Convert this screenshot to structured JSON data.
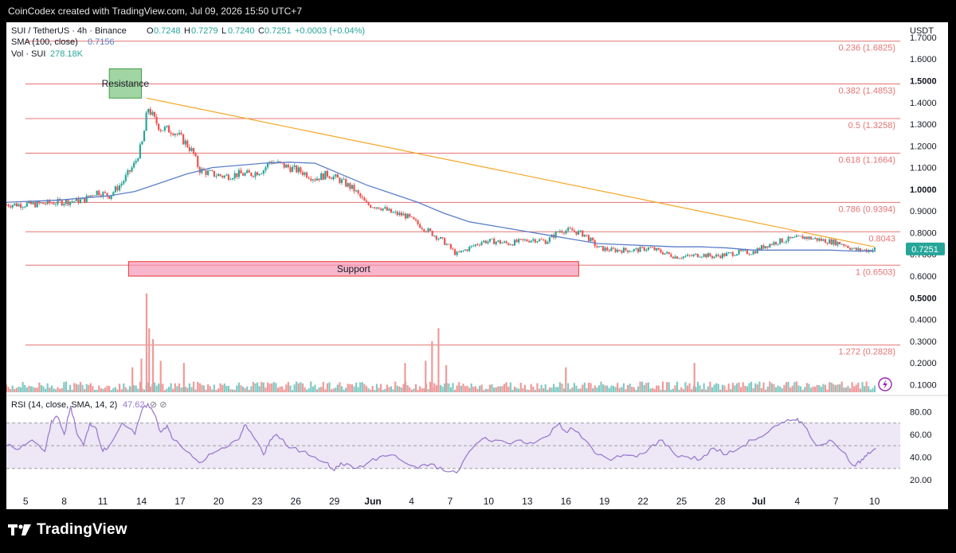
{
  "header": {
    "credit": "CoinCodex created with TradingView.com, Jul 09, 2026 15:50 UTC+7",
    "symbol": "SUI / TetherUS · 4h · Binance",
    "ohlc": {
      "o_label": "O",
      "o": "0.7248",
      "h_label": "H",
      "h": "0.7279",
      "l_label": "L",
      "l": "0.7240",
      "c_label": "C",
      "c": "0.7251",
      "change": "+0.0003 (+0.04%)"
    },
    "sma_label": "SMA (100, close)",
    "sma_value": "0.7156",
    "vol_label": "Vol · SUI",
    "vol_value": "278.18K",
    "rsi_label": "RSI (14, close, SMA, 14, 2)",
    "rsi_value": "47.62",
    "rsi_icons": "⊘ ⊘"
  },
  "logo": {
    "text": "TradingView",
    "icon": "tradingview-logo-icon"
  },
  "colors": {
    "up": "#26a69a",
    "down": "#ef5350",
    "sma": "#5b7ec9",
    "trendline": "#f5a623",
    "fib": "#e57373",
    "resistance_fill": "#81c784",
    "support_fill": "#f48fb1",
    "rsi": "#9575cd",
    "rsi_band": "#ede7f6",
    "price_badge": "#26a69a"
  },
  "chart_data": {
    "type": "candlestick",
    "currency_label": "USDT",
    "last_price": "0.7251",
    "x_ticks": [
      "5",
      "8",
      "11",
      "14",
      "17",
      "20",
      "23",
      "26",
      "29",
      "Jun",
      "4",
      "7",
      "10",
      "13",
      "16",
      "19",
      "22",
      "25",
      "28",
      "Jul",
      "4",
      "7",
      "10"
    ],
    "y_ticks": [
      "1.7000",
      "1.6000",
      "1.5000",
      "1.4000",
      "1.3000",
      "1.2000",
      "1.1000",
      "1.0000",
      "0.9000",
      "0.8000",
      "0.7000",
      "0.6000",
      "0.5000",
      "0.4000",
      "0.3000",
      "0.2000",
      "0.1000"
    ],
    "y_ticks_bold": [
      "1.5000",
      "1.0000",
      "0.5000"
    ],
    "y_range": [
      0.065,
      1.74
    ],
    "fib_levels": [
      {
        "label": "0.236 (1.6825)",
        "value": 1.6825
      },
      {
        "label": "0.382 (1.4853)",
        "value": 1.4853
      },
      {
        "label": "0.5 (1.3258)",
        "value": 1.3258
      },
      {
        "label": "0.618 (1.1664)",
        "value": 1.1664
      },
      {
        "label": "0.786 (0.9394)",
        "value": 0.9394
      },
      {
        "label": "0.8043",
        "value": 0.8043
      },
      {
        "label": "1 (0.6503)",
        "value": 0.6503
      },
      {
        "label": "1.272 (0.2828)",
        "value": 0.2828
      }
    ],
    "zones": [
      {
        "label": "Resistance",
        "x_start": 8.0,
        "x_end": 10.5,
        "top": 1.555,
        "bottom": 1.42
      },
      {
        "label": "Support",
        "x_start": 9.5,
        "x_end": 44.5,
        "top": 0.667,
        "bottom": 0.6
      }
    ],
    "trendline": [
      {
        "x": 10.9,
        "y": 1.42
      },
      {
        "x": 67.5,
        "y": 0.735
      }
    ],
    "price_path": [
      [
        2,
        0.93
      ],
      [
        4,
        0.94
      ],
      [
        6,
        0.95
      ],
      [
        7,
        0.99
      ],
      [
        8,
        0.97
      ],
      [
        9,
        1.03
      ],
      [
        10,
        1.12
      ],
      [
        10.6,
        1.22
      ],
      [
        11,
        1.38
      ],
      [
        11.5,
        1.32
      ],
      [
        12,
        1.28
      ],
      [
        13,
        1.27
      ],
      [
        14,
        1.21
      ],
      [
        14.5,
        1.17
      ],
      [
        15,
        1.09
      ],
      [
        16,
        1.07
      ],
      [
        17,
        1.06
      ],
      [
        18,
        1.07
      ],
      [
        19,
        1.07
      ],
      [
        20,
        1.09
      ],
      [
        20.5,
        1.13
      ],
      [
        21,
        1.12
      ],
      [
        22,
        1.1
      ],
      [
        23,
        1.08
      ],
      [
        24,
        1.05
      ],
      [
        25,
        1.07
      ],
      [
        26,
        1.04
      ],
      [
        27,
        1.0
      ],
      [
        28,
        0.93
      ],
      [
        29,
        0.92
      ],
      [
        30,
        0.89
      ],
      [
        31,
        0.88
      ],
      [
        32,
        0.84
      ],
      [
        33,
        0.8
      ],
      [
        34,
        0.76
      ],
      [
        35,
        0.7
      ],
      [
        36,
        0.73
      ],
      [
        37,
        0.76
      ],
      [
        38,
        0.76
      ],
      [
        39,
        0.75
      ],
      [
        40,
        0.76
      ],
      [
        41,
        0.77
      ],
      [
        42,
        0.76
      ],
      [
        43,
        0.81
      ],
      [
        44,
        0.81
      ],
      [
        45,
        0.79
      ],
      [
        46,
        0.73
      ],
      [
        47,
        0.72
      ],
      [
        48,
        0.72
      ],
      [
        49,
        0.72
      ],
      [
        50,
        0.73
      ],
      [
        51,
        0.71
      ],
      [
        52,
        0.69
      ],
      [
        53,
        0.69
      ],
      [
        54,
        0.7
      ],
      [
        55,
        0.69
      ],
      [
        56,
        0.7
      ],
      [
        57,
        0.71
      ],
      [
        58,
        0.71
      ],
      [
        59,
        0.74
      ],
      [
        60,
        0.76
      ],
      [
        61,
        0.77
      ],
      [
        62,
        0.78
      ],
      [
        63,
        0.77
      ],
      [
        64,
        0.76
      ],
      [
        65,
        0.75
      ],
      [
        66,
        0.72
      ],
      [
        67,
        0.72
      ],
      [
        67.6,
        0.725
      ]
    ],
    "sma_path": [
      [
        0,
        0.94
      ],
      [
        4,
        0.95
      ],
      [
        8,
        0.97
      ],
      [
        10,
        0.99
      ],
      [
        12,
        1.03
      ],
      [
        14,
        1.07
      ],
      [
        16,
        1.1
      ],
      [
        18,
        1.11
      ],
      [
        20,
        1.12
      ],
      [
        22,
        1.125
      ],
      [
        24,
        1.12
      ],
      [
        26,
        1.07
      ],
      [
        28,
        1.02
      ],
      [
        30,
        0.98
      ],
      [
        32,
        0.94
      ],
      [
        34,
        0.89
      ],
      [
        36,
        0.85
      ],
      [
        38,
        0.83
      ],
      [
        40,
        0.81
      ],
      [
        42,
        0.79
      ],
      [
        44,
        0.77
      ],
      [
        46,
        0.75
      ],
      [
        48,
        0.745
      ],
      [
        50,
        0.74
      ],
      [
        52,
        0.735
      ],
      [
        54,
        0.735
      ],
      [
        56,
        0.73
      ],
      [
        58,
        0.72
      ],
      [
        60,
        0.72
      ],
      [
        62,
        0.72
      ],
      [
        64,
        0.72
      ],
      [
        66,
        0.715
      ],
      [
        67.6,
        0.7156
      ]
    ],
    "volume_spikes": [
      {
        "x": 10.9,
        "v": 0.52
      },
      {
        "x": 11.1,
        "v": 0.36
      },
      {
        "x": 11.4,
        "v": 0.31
      },
      {
        "x": 10.5,
        "v": 0.22
      },
      {
        "x": 12,
        "v": 0.21
      },
      {
        "x": 9.8,
        "v": 0.18
      },
      {
        "x": 13.8,
        "v": 0.2
      },
      {
        "x": 33.1,
        "v": 0.3
      },
      {
        "x": 33.6,
        "v": 0.36
      },
      {
        "x": 32.6,
        "v": 0.21
      },
      {
        "x": 34.2,
        "v": 0.19
      },
      {
        "x": 31,
        "v": 0.2
      },
      {
        "x": 53.5,
        "v": 0.2
      },
      {
        "x": 43.5,
        "v": 0.18
      }
    ],
    "rsi": {
      "y_ticks": [
        "80.00",
        "60.00",
        "40.00",
        "20.00"
      ],
      "range": [
        13,
        90
      ],
      "band": [
        30,
        70
      ],
      "mid": 50,
      "path": [
        [
          0,
          50
        ],
        [
          1,
          47
        ],
        [
          2,
          55
        ],
        [
          3,
          45
        ],
        [
          3.5,
          72
        ],
        [
          4,
          75
        ],
        [
          4.5,
          60
        ],
        [
          5,
          85
        ],
        [
          5.5,
          60
        ],
        [
          6,
          50
        ],
        [
          6.5,
          70
        ],
        [
          7,
          65
        ],
        [
          7.5,
          45
        ],
        [
          8,
          50
        ],
        [
          9,
          70
        ],
        [
          10,
          60
        ],
        [
          10.5,
          80
        ],
        [
          11,
          87
        ],
        [
          11.5,
          78
        ],
        [
          12,
          62
        ],
        [
          12.5,
          68
        ],
        [
          13,
          55
        ],
        [
          14,
          45
        ],
        [
          15,
          35
        ],
        [
          16,
          43
        ],
        [
          17,
          48
        ],
        [
          18,
          55
        ],
        [
          18.5,
          68
        ],
        [
          19,
          62
        ],
        [
          20,
          42
        ],
        [
          20.5,
          55
        ],
        [
          21,
          60
        ],
        [
          22,
          48
        ],
        [
          23,
          45
        ],
        [
          24,
          40
        ],
        [
          25,
          35
        ],
        [
          25.5,
          28
        ],
        [
          26,
          35
        ],
        [
          27,
          30
        ],
        [
          28,
          34
        ],
        [
          29,
          40
        ],
        [
          30,
          42
        ],
        [
          31,
          35
        ],
        [
          32,
          30
        ],
        [
          33,
          34
        ],
        [
          34,
          28
        ],
        [
          35,
          26
        ],
        [
          36,
          45
        ],
        [
          37,
          56
        ],
        [
          38,
          55
        ],
        [
          39,
          52
        ],
        [
          40,
          55
        ],
        [
          41,
          52
        ],
        [
          42,
          58
        ],
        [
          43,
          70
        ],
        [
          43.5,
          62
        ],
        [
          44,
          65
        ],
        [
          45,
          55
        ],
        [
          46,
          42
        ],
        [
          47,
          37
        ],
        [
          48,
          42
        ],
        [
          49,
          40
        ],
        [
          50,
          48
        ],
        [
          51,
          55
        ],
        [
          52,
          42
        ],
        [
          53,
          40
        ],
        [
          54,
          38
        ],
        [
          55,
          48
        ],
        [
          56,
          42
        ],
        [
          57,
          48
        ],
        [
          58,
          55
        ],
        [
          59,
          60
        ],
        [
          60,
          68
        ],
        [
          61,
          72
        ],
        [
          61.5,
          74
        ],
        [
          62,
          68
        ],
        [
          63,
          50
        ],
        [
          64,
          55
        ],
        [
          65,
          45
        ],
        [
          66,
          32
        ],
        [
          66.5,
          38
        ],
        [
          67,
          44
        ],
        [
          67.6,
          47.62
        ]
      ]
    }
  }
}
